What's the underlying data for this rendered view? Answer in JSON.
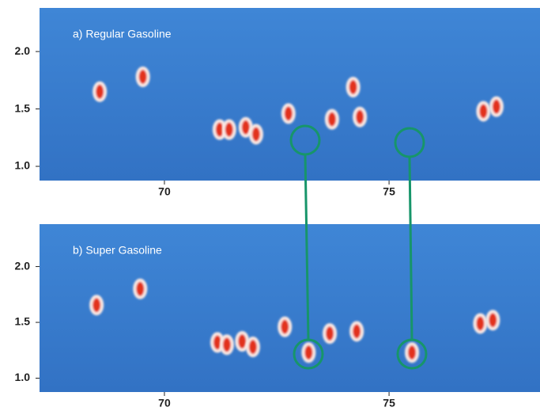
{
  "chart_data": [
    {
      "type": "scatter",
      "title": "a) Regular Gasoline",
      "x": [
        68.56,
        69.52,
        71.23,
        71.44,
        71.81,
        72.04,
        72.76,
        73.73,
        74.2,
        74.35,
        77.1,
        77.39
      ],
      "y": [
        1.65,
        1.78,
        1.32,
        1.32,
        1.34,
        1.28,
        1.46,
        1.41,
        1.69,
        1.43,
        1.48,
        1.52
      ],
      "color": "#e2321c",
      "xlim": [
        67.22,
        78.36
      ],
      "ylim": [
        0.876,
        2.38
      ],
      "xticks": [
        70,
        75
      ],
      "yticks": [
        {
          "value": 1,
          "label": "1.0"
        },
        1.5,
        {
          "value": 2,
          "label": "2.0"
        }
      ]
    },
    {
      "type": "scatter",
      "title": "b) Super Gasoline",
      "x": [
        68.49,
        69.46,
        71.18,
        71.39,
        71.73,
        71.97,
        72.68,
        73.21,
        73.68,
        74.28,
        75.51,
        77.03,
        77.31
      ],
      "y": [
        1.655,
        1.8,
        1.32,
        1.3,
        1.33,
        1.28,
        1.46,
        1.23,
        1.4,
        1.42,
        1.23,
        1.49,
        1.52
      ],
      "color": "#e2321c",
      "xlim": [
        67.22,
        78.36
      ],
      "ylim": [
        0.876,
        2.38
      ],
      "xticks": [
        70,
        75
      ],
      "yticks": [
        {
          "value": 1,
          "label": "1.0"
        },
        1.5,
        {
          "value": 2,
          "label": "2.0"
        }
      ]
    }
  ]
}
